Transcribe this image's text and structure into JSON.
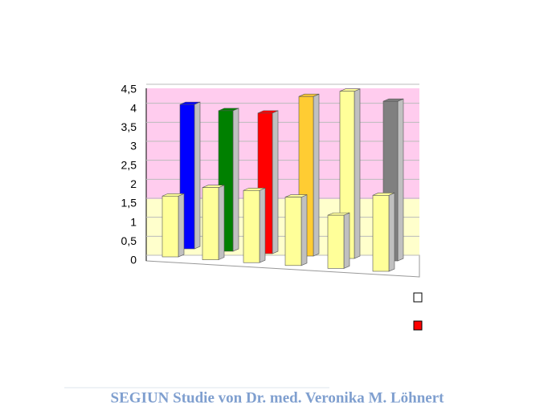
{
  "chart_data": {
    "type": "bar3d",
    "categories": [
      null,
      null,
      null,
      null,
      null,
      null
    ],
    "series": [
      {
        "colors": [
          "#0000ff",
          "#008000",
          "#ff0000",
          "#ffcc33",
          "#ffff99",
          "#808080"
        ],
        "values": [
          3.8,
          3.7,
          3.7,
          4.2,
          4.4,
          4.2
        ]
      },
      {
        "color": "#ffff99",
        "values": [
          1.6,
          1.9,
          1.9,
          1.8,
          1.4,
          2.0
        ]
      }
    ],
    "ylim": [
      0,
      4.5
    ],
    "yticks": [
      0,
      {
        "value": 0.5,
        "label": "0,5"
      },
      1,
      {
        "value": 1.5,
        "label": "1,5"
      },
      2,
      {
        "value": 2.5,
        "label": "2,5"
      },
      3,
      {
        "value": 3.5,
        "label": "3,5"
      },
      4,
      {
        "value": 4.5,
        "label": "4,5"
      }
    ],
    "grid": true,
    "legend_swatches": [
      "#ffffff",
      "#ff0000"
    ],
    "footer": "SEGIUN Studie von Dr. med. Veronika M. Löhnert"
  }
}
